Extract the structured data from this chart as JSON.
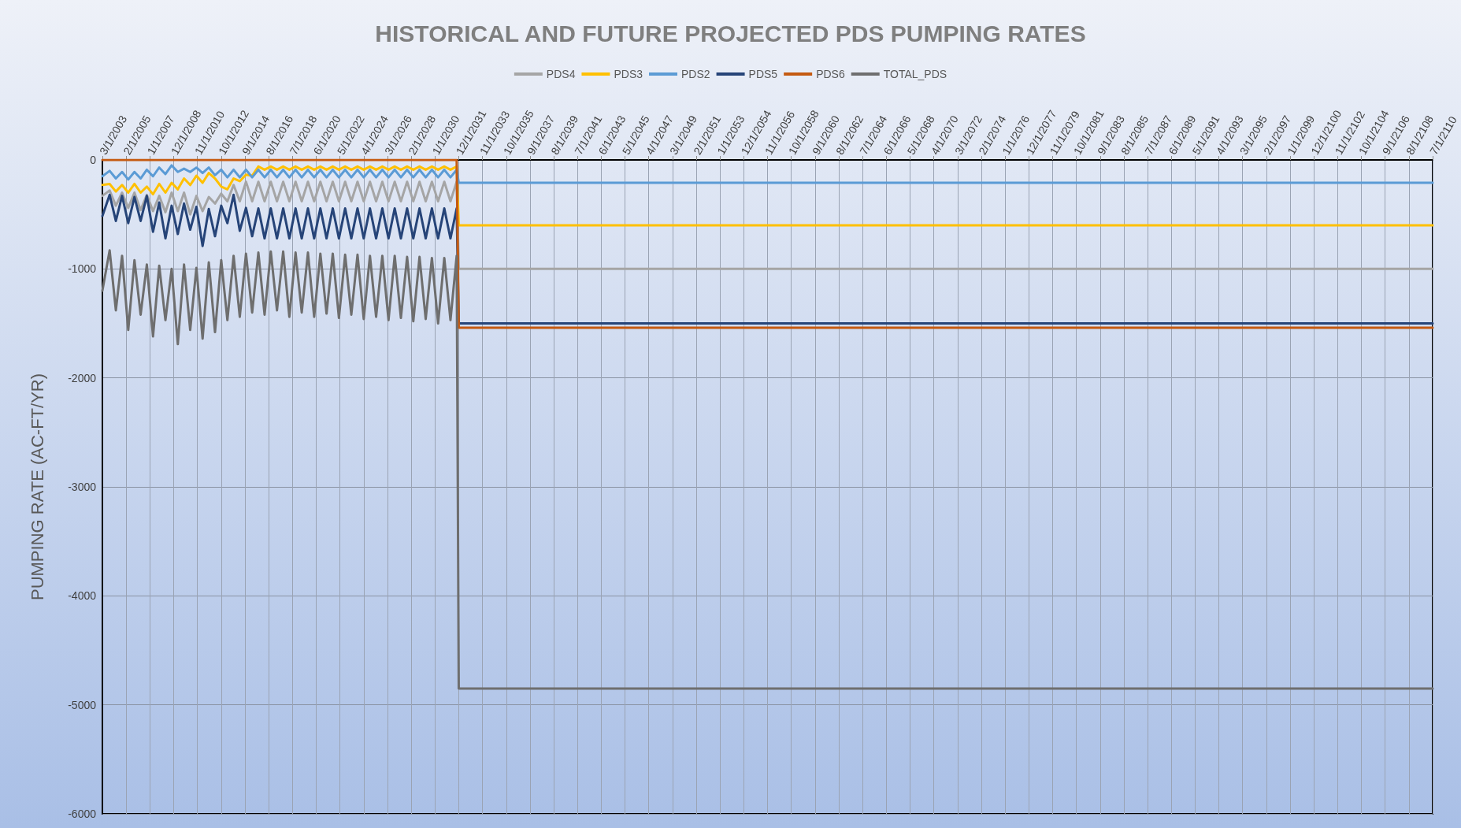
{
  "chart_data": {
    "type": "line",
    "title": "HISTORICAL AND FUTURE PROJECTED PDS PUMPING RATES",
    "ylabel": "PUMPING RATE (AC-FT/YR)",
    "x": [
      "2003-03-01",
      "2003-10-01",
      "2004-04-01",
      "2004-10-01",
      "2005-04-01",
      "2005-10-01",
      "2006-04-01",
      "2006-10-01",
      "2007-04-01",
      "2007-10-01",
      "2008-04-01",
      "2008-10-01",
      "2009-04-01",
      "2009-10-01",
      "2010-04-01",
      "2010-10-01",
      "2011-04-01",
      "2011-10-01",
      "2012-04-01",
      "2012-10-01",
      "2013-04-01",
      "2013-10-01",
      "2014-04-01",
      "2014-10-01",
      "2015-04-01",
      "2015-10-01",
      "2016-04-01",
      "2016-10-01",
      "2017-04-01",
      "2017-10-01",
      "2018-04-01",
      "2018-10-01",
      "2019-04-01",
      "2019-10-01",
      "2020-04-01",
      "2020-10-01",
      "2021-04-01",
      "2021-10-01",
      "2022-04-01",
      "2022-10-01",
      "2023-04-01",
      "2023-10-01",
      "2024-04-01",
      "2024-10-01",
      "2025-04-01",
      "2025-10-01",
      "2026-04-01",
      "2026-10-01",
      "2027-04-01",
      "2027-10-01",
      "2028-04-01",
      "2028-10-01",
      "2029-04-01",
      "2029-10-01",
      "2030-04-01",
      "2030-10-01",
      "2031-04-01",
      "2031-10-01",
      "2031-12-01",
      "2110-07-01"
    ],
    "series": [
      {
        "name": "PDS4",
        "color": "#a5a5a5",
        "values": [
          -330,
          -280,
          -420,
          -300,
          -440,
          -300,
          -460,
          -320,
          -470,
          -330,
          -480,
          -300,
          -470,
          -300,
          -500,
          -330,
          -470,
          -340,
          -400,
          -310,
          -380,
          -230,
          -380,
          -200,
          -380,
          -200,
          -380,
          -200,
          -380,
          -200,
          -380,
          -200,
          -380,
          -200,
          -380,
          -200,
          -380,
          -200,
          -380,
          -200,
          -380,
          -200,
          -380,
          -200,
          -380,
          -200,
          -380,
          -200,
          -380,
          -200,
          -380,
          -200,
          -380,
          -200,
          -380,
          -200,
          -380,
          -200,
          -1000,
          -1000
        ]
      },
      {
        "name": "PDS3",
        "color": "#ffc000",
        "values": [
          -230,
          -220,
          -290,
          -230,
          -300,
          -220,
          -300,
          -245,
          -315,
          -220,
          -300,
          -210,
          -270,
          -170,
          -230,
          -145,
          -210,
          -120,
          -170,
          -245,
          -270,
          -170,
          -195,
          -135,
          -145,
          -60,
          -90,
          -60,
          -90,
          -60,
          -90,
          -60,
          -90,
          -60,
          -90,
          -60,
          -90,
          -60,
          -90,
          -60,
          -90,
          -60,
          -90,
          -60,
          -90,
          -60,
          -90,
          -60,
          -90,
          -60,
          -90,
          -60,
          -90,
          -60,
          -90,
          -60,
          -90,
          -60,
          -600,
          -600
        ]
      },
      {
        "name": "PDS2",
        "color": "#5b9bd5",
        "values": [
          -150,
          -100,
          -170,
          -110,
          -180,
          -110,
          -170,
          -90,
          -150,
          -70,
          -130,
          -50,
          -110,
          -80,
          -110,
          -70,
          -120,
          -70,
          -140,
          -90,
          -160,
          -90,
          -160,
          -90,
          -160,
          -90,
          -160,
          -90,
          -160,
          -90,
          -160,
          -90,
          -160,
          -90,
          -160,
          -90,
          -160,
          -90,
          -160,
          -90,
          -160,
          -90,
          -160,
          -90,
          -160,
          -90,
          -160,
          -90,
          -160,
          -90,
          -160,
          -90,
          -160,
          -90,
          -160,
          -90,
          -160,
          -90,
          -210,
          -210
        ]
      },
      {
        "name": "PDS5",
        "color": "#264478",
        "values": [
          -515,
          -320,
          -560,
          -330,
          -580,
          -340,
          -560,
          -330,
          -660,
          -390,
          -720,
          -420,
          -680,
          -400,
          -640,
          -430,
          -790,
          -450,
          -700,
          -420,
          -580,
          -320,
          -650,
          -440,
          -700,
          -445,
          -720,
          -445,
          -720,
          -445,
          -720,
          -445,
          -720,
          -445,
          -720,
          -445,
          -720,
          -445,
          -720,
          -445,
          -720,
          -445,
          -720,
          -445,
          -720,
          -445,
          -720,
          -445,
          -720,
          -445,
          -720,
          -445,
          -720,
          -445,
          -720,
          -445,
          -720,
          -445,
          -1500,
          -1500
        ]
      },
      {
        "name": "PDS6",
        "color": "#c55a11",
        "values": [
          0,
          0,
          0,
          0,
          0,
          0,
          0,
          0,
          0,
          0,
          0,
          0,
          0,
          0,
          0,
          0,
          0,
          0,
          0,
          0,
          0,
          0,
          0,
          0,
          0,
          0,
          0,
          0,
          0,
          0,
          0,
          0,
          0,
          0,
          0,
          0,
          0,
          0,
          0,
          0,
          0,
          0,
          0,
          0,
          0,
          0,
          0,
          0,
          0,
          0,
          0,
          0,
          0,
          0,
          0,
          0,
          0,
          0,
          -1540,
          -1540
        ]
      },
      {
        "name": "TOTAL_PDS",
        "color": "#6e6e6e",
        "values": [
          -1200,
          -830,
          -1380,
          -880,
          -1560,
          -920,
          -1420,
          -960,
          -1620,
          -970,
          -1470,
          -1000,
          -1690,
          -960,
          -1560,
          -990,
          -1640,
          -940,
          -1580,
          -920,
          -1470,
          -880,
          -1440,
          -860,
          -1400,
          -850,
          -1420,
          -840,
          -1380,
          -840,
          -1440,
          -850,
          -1400,
          -850,
          -1440,
          -860,
          -1410,
          -860,
          -1450,
          -870,
          -1420,
          -870,
          -1460,
          -880,
          -1440,
          -880,
          -1470,
          -880,
          -1450,
          -890,
          -1480,
          -890,
          -1460,
          -900,
          -1500,
          -900,
          -1470,
          -880,
          -4850,
          -4850
        ]
      }
    ],
    "xlim": [
      "2003-03-01",
      "2110-07-01"
    ],
    "xticks": [
      {
        "value": "2003-03-01",
        "label": "3/1/2003"
      },
      {
        "value": "2005-02-01",
        "label": "2/1/2005"
      },
      {
        "value": "2007-01-01",
        "label": "1/1/2007"
      },
      {
        "value": "2008-12-01",
        "label": "12/1/2008"
      },
      {
        "value": "2010-11-01",
        "label": "11/1/2010"
      },
      {
        "value": "2012-10-01",
        "label": "10/1/2012"
      },
      {
        "value": "2014-09-01",
        "label": "9/1/2014"
      },
      {
        "value": "2016-08-01",
        "label": "8/1/2016"
      },
      {
        "value": "2018-07-01",
        "label": "7/1/2018"
      },
      {
        "value": "2020-06-01",
        "label": "6/1/2020"
      },
      {
        "value": "2022-05-01",
        "label": "5/1/2022"
      },
      {
        "value": "2024-04-01",
        "label": "4/1/2024"
      },
      {
        "value": "2026-03-01",
        "label": "3/1/2026"
      },
      {
        "value": "2028-02-01",
        "label": "2/1/2028"
      },
      {
        "value": "2030-01-01",
        "label": "1/1/2030"
      },
      {
        "value": "2031-12-01",
        "label": "12/1/2031"
      },
      {
        "value": "2033-11-01",
        "label": "11/1/2033"
      },
      {
        "value": "2035-10-01",
        "label": "10/1/2035"
      },
      {
        "value": "2037-09-01",
        "label": "9/1/2037"
      },
      {
        "value": "2039-08-01",
        "label": "8/1/2039"
      },
      {
        "value": "2041-07-01",
        "label": "7/1/2041"
      },
      {
        "value": "2043-06-01",
        "label": "6/1/2043"
      },
      {
        "value": "2045-05-01",
        "label": "5/1/2045"
      },
      {
        "value": "2047-04-01",
        "label": "4/1/2047"
      },
      {
        "value": "2049-03-01",
        "label": "3/1/2049"
      },
      {
        "value": "2051-02-01",
        "label": "2/1/2051"
      },
      {
        "value": "2053-01-01",
        "label": "1/1/2053"
      },
      {
        "value": "2054-12-01",
        "label": "12/1/2054"
      },
      {
        "value": "2056-11-01",
        "label": "11/1/2056"
      },
      {
        "value": "2058-10-01",
        "label": "10/1/2058"
      },
      {
        "value": "2060-09-01",
        "label": "9/1/2060"
      },
      {
        "value": "2062-08-01",
        "label": "8/1/2062"
      },
      {
        "value": "2064-07-01",
        "label": "7/1/2064"
      },
      {
        "value": "2066-06-01",
        "label": "6/1/2066"
      },
      {
        "value": "2068-05-01",
        "label": "5/1/2068"
      },
      {
        "value": "2070-04-01",
        "label": "4/1/2070"
      },
      {
        "value": "2072-03-01",
        "label": "3/1/2072"
      },
      {
        "value": "2074-02-01",
        "label": "2/1/2074"
      },
      {
        "value": "2076-01-01",
        "label": "1/1/2076"
      },
      {
        "value": "2077-12-01",
        "label": "12/1/2077"
      },
      {
        "value": "2079-11-01",
        "label": "11/1/2079"
      },
      {
        "value": "2081-10-01",
        "label": "10/1/2081"
      },
      {
        "value": "2083-09-01",
        "label": "9/1/2083"
      },
      {
        "value": "2085-08-01",
        "label": "8/1/2085"
      },
      {
        "value": "2087-07-01",
        "label": "7/1/2087"
      },
      {
        "value": "2089-06-01",
        "label": "6/1/2089"
      },
      {
        "value": "2091-05-01",
        "label": "5/1/2091"
      },
      {
        "value": "2093-04-01",
        "label": "4/1/2093"
      },
      {
        "value": "2095-03-01",
        "label": "3/1/2095"
      },
      {
        "value": "2097-02-01",
        "label": "2/1/2097"
      },
      {
        "value": "2099-01-01",
        "label": "1/1/2099"
      },
      {
        "value": "2100-12-01",
        "label": "12/1/2100"
      },
      {
        "value": "2102-11-01",
        "label": "11/1/2102"
      },
      {
        "value": "2104-10-01",
        "label": "10/1/2104"
      },
      {
        "value": "2106-09-01",
        "label": "9/1/2106"
      },
      {
        "value": "2108-08-01",
        "label": "8/1/2108"
      },
      {
        "value": "2110-07-01",
        "label": "7/1/2110"
      }
    ],
    "ylim": [
      -6000,
      0
    ],
    "yticks": [
      -6000,
      -5000,
      -4000,
      -3000,
      -2000,
      -1000,
      0
    ],
    "grid": true,
    "legend": "top"
  }
}
